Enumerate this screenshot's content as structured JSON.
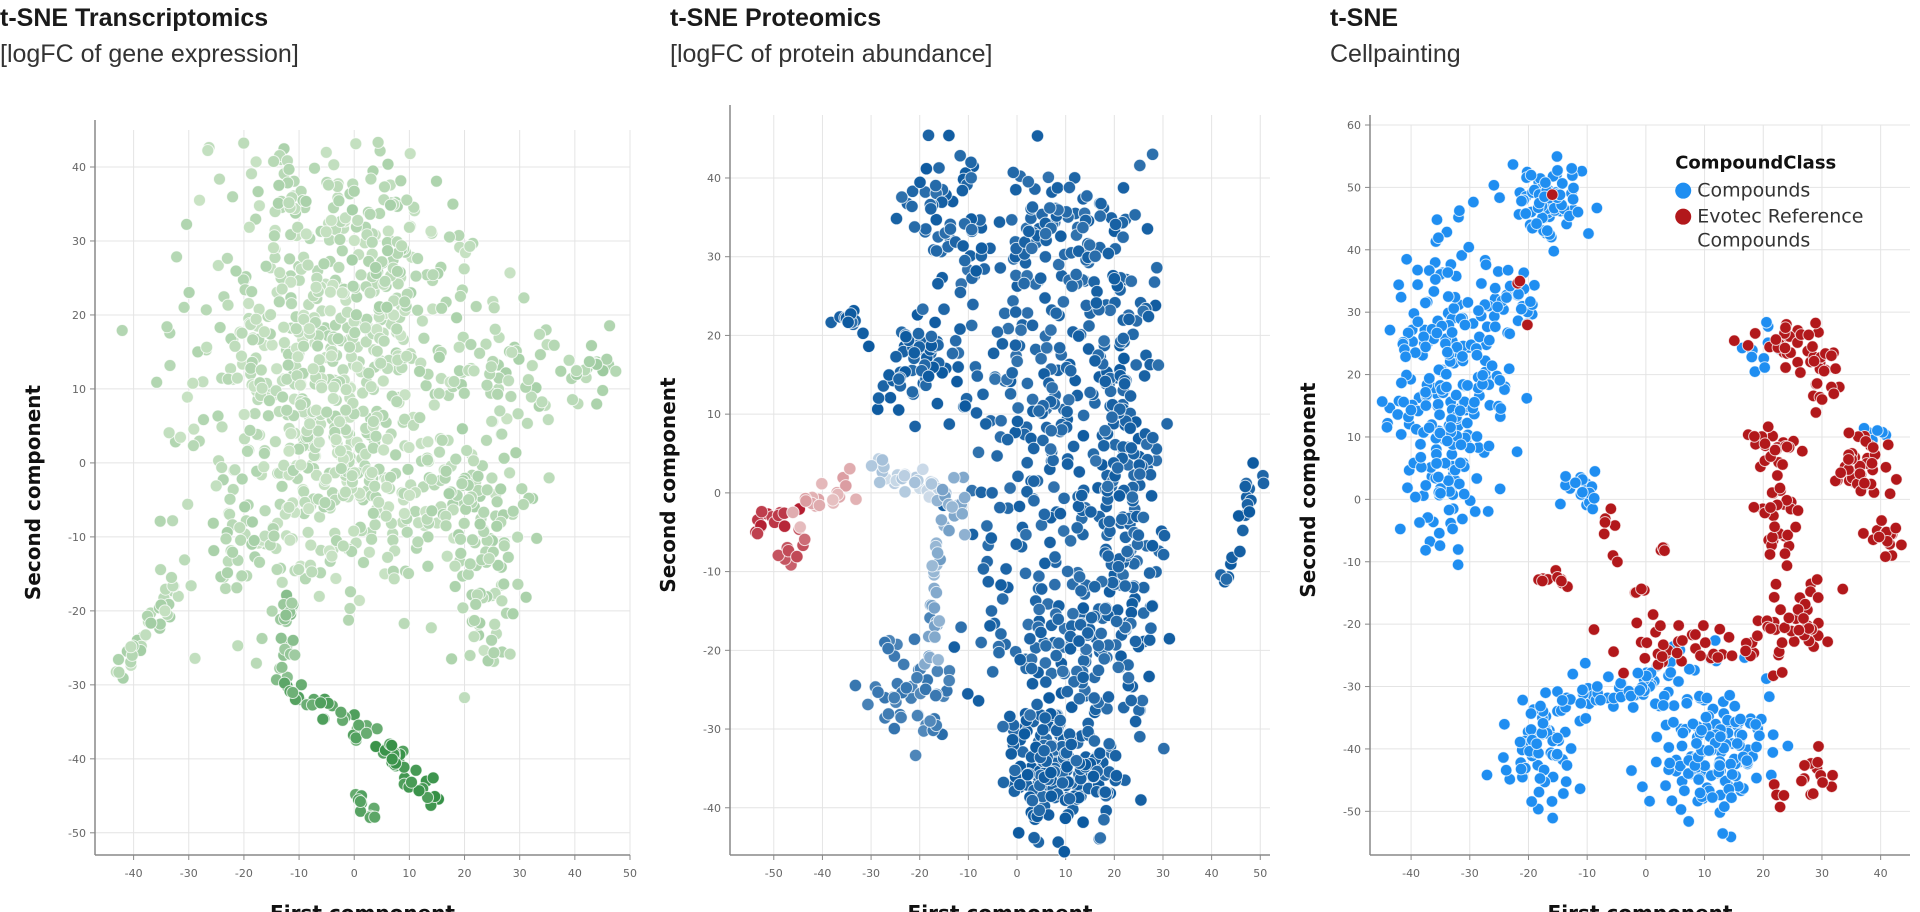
{
  "chart_data": [
    {
      "id": "transcriptomics",
      "type": "scatter",
      "title": "t-SNE Transcriptomics",
      "subtitle": "[logFC of gene expression]",
      "xlabel": "First component",
      "ylabel": "Second component",
      "xlim": [
        -47,
        50
      ],
      "ylim": [
        -53,
        45
      ],
      "xticks": [
        -40,
        -30,
        -20,
        -10,
        0,
        10,
        20,
        30,
        40,
        50
      ],
      "yticks": [
        -50,
        -40,
        -30,
        -20,
        -10,
        0,
        10,
        20,
        30,
        40
      ],
      "grid": true,
      "legend": null,
      "color_scale": "greens (light = low, dark = high)",
      "point_color_range": [
        "#cfe6c8",
        "#2e8b3e"
      ],
      "clusters": [
        {
          "cx": -5,
          "cy": 15,
          "sx": 12,
          "sy": 12,
          "n": 520,
          "shade": 0.15
        },
        {
          "cx": -2,
          "cy": -5,
          "sx": 12,
          "sy": 8,
          "n": 220,
          "shade": 0.15
        },
        {
          "cx": 30,
          "cy": 12,
          "sx": 8,
          "sy": 3,
          "n": 60,
          "shade": 0.2
        },
        {
          "cx": 43,
          "cy": 13,
          "sx": 2,
          "sy": 1,
          "n": 12,
          "shade": 0.25
        },
        {
          "cx": 22,
          "cy": -5,
          "sx": 5,
          "sy": 5,
          "n": 80,
          "shade": 0.2
        },
        {
          "cx": 24,
          "cy": -20,
          "sx": 3,
          "sy": 5,
          "n": 40,
          "shade": 0.2
        },
        {
          "cx": -12,
          "cy": 38,
          "sx": 2,
          "sy": 2,
          "n": 20,
          "shade": 0.2
        },
        {
          "cx": 5,
          "cy": 36,
          "sx": 4,
          "sy": 1.5,
          "n": 20,
          "shade": 0.2
        },
        {
          "cx": 8,
          "cy": 26,
          "sx": 5,
          "sy": 4,
          "n": 40,
          "shade": 0.2
        },
        {
          "cx": -20,
          "cy": -12,
          "sx": 3,
          "sy": 3,
          "n": 25,
          "shade": 0.2
        }
      ],
      "trails": [
        {
          "from": [
            -43,
            -29
          ],
          "to": [
            -30,
            -14
          ],
          "n": 40,
          "shade": 0.2
        },
        {
          "from": [
            -12,
            -18
          ],
          "to": [
            -12,
            -30
          ],
          "n": 25,
          "shade": 0.4
        },
        {
          "from": [
            -12,
            -31
          ],
          "to": [
            4,
            -37
          ],
          "n": 30,
          "shade": 0.7
        },
        {
          "from": [
            5,
            -38
          ],
          "to": [
            16,
            -47
          ],
          "n": 35,
          "shade": 0.85
        },
        {
          "from": [
            0,
            -45
          ],
          "to": [
            3,
            -48
          ],
          "n": 10,
          "shade": 0.75
        }
      ]
    },
    {
      "id": "proteomics",
      "type": "scatter",
      "title": "t-SNE Proteomics",
      "subtitle": "[logFC of protein abundance]",
      "xlabel": "First component",
      "ylabel": "Second component",
      "xlim": [
        -59,
        52
      ],
      "ylim": [
        -46,
        48
      ],
      "xticks": [
        -50,
        -40,
        -30,
        -20,
        -10,
        0,
        10,
        20,
        30,
        40,
        50
      ],
      "yticks": [
        -40,
        -30,
        -20,
        -10,
        0,
        10,
        20,
        30,
        40
      ],
      "grid": true,
      "legend": null,
      "color_scale": "diverging red-white-blue (red = negative, blue = positive)",
      "point_color_range": [
        "#b2182b",
        "#f7f7f7",
        "#08519c"
      ],
      "clusters": [
        {
          "cx": 8,
          "cy": -35,
          "sx": 5,
          "sy": 4,
          "n": 200,
          "shade": 0.95
        },
        {
          "cx": 22,
          "cy": 0,
          "sx": 4,
          "sy": 18,
          "n": 220,
          "shade": 0.92
        },
        {
          "cx": 5,
          "cy": 10,
          "sx": 9,
          "sy": 16,
          "n": 260,
          "shade": 0.9
        },
        {
          "cx": -20,
          "cy": 17,
          "sx": 5,
          "sy": 3,
          "n": 60,
          "shade": 0.95
        },
        {
          "cx": 8,
          "cy": 33,
          "sx": 6,
          "sy": 3,
          "n": 60,
          "shade": 0.9
        },
        {
          "cx": -15,
          "cy": 35,
          "sx": 4,
          "sy": 6,
          "n": 60,
          "shade": 0.92
        },
        {
          "cx": -22,
          "cy": -25,
          "sx": 5,
          "sy": 4,
          "n": 50,
          "shade": 0.75
        },
        {
          "cx": 10,
          "cy": -20,
          "sx": 8,
          "sy": 5,
          "n": 90,
          "shade": 0.9
        }
      ],
      "trails": [
        {
          "from": [
            -54,
            -4
          ],
          "to": [
            -46,
            -2
          ],
          "n": 14,
          "shade": -0.9
        },
        {
          "from": [
            -48,
            -8
          ],
          "to": [
            -44,
            -6
          ],
          "n": 10,
          "shade": -0.7
        },
        {
          "from": [
            -44,
            -1
          ],
          "to": [
            -33,
            1
          ],
          "n": 20,
          "shade": -0.3
        },
        {
          "from": [
            -30,
            3
          ],
          "to": [
            -15,
            0
          ],
          "n": 30,
          "shade": 0.2
        },
        {
          "from": [
            -15,
            0
          ],
          "to": [
            -18,
            -20
          ],
          "n": 30,
          "shade": 0.45
        },
        {
          "from": [
            -12,
            1
          ],
          "to": [
            -12,
            -5
          ],
          "n": 10,
          "shade": 0.4
        },
        {
          "from": [
            -37,
            22
          ],
          "to": [
            -30,
            20
          ],
          "n": 12,
          "shade": 0.95
        },
        {
          "from": [
            43,
            -12
          ],
          "to": [
            49,
            4
          ],
          "n": 20,
          "shade": 0.95
        }
      ]
    },
    {
      "id": "cellpainting",
      "type": "scatter",
      "title": "t-SNE",
      "subtitle": "Cellpainting",
      "xlabel": "First component",
      "ylabel": "Second component",
      "xlim": [
        -47,
        45
      ],
      "ylim": [
        -57,
        60
      ],
      "xticks": [
        -40,
        -30,
        -20,
        -10,
        0,
        10,
        20,
        30,
        40
      ],
      "yticks": [
        -50,
        -40,
        -30,
        -20,
        -10,
        0,
        10,
        20,
        30,
        40,
        50,
        60
      ],
      "grid": true,
      "legend": {
        "title": "CompoundClass",
        "position": "top-right",
        "entries": [
          {
            "label": "Compounds",
            "color": "#1f8ef1"
          },
          {
            "label": "Evotec Reference Compounds",
            "color": "#b2181b"
          }
        ]
      },
      "series": [
        {
          "name": "Compounds",
          "color": "#1f8ef1",
          "clusters": [
            {
              "cx": -17,
              "cy": 48,
              "sx": 2.8,
              "sy": 3.2,
              "n": 80
            },
            {
              "cx": -34,
              "cy": 15,
              "sx": 5,
              "sy": 12,
              "n": 240
            },
            {
              "cx": -25,
              "cy": 31,
              "sx": 3,
              "sy": 4,
              "n": 40
            },
            {
              "cx": -18,
              "cy": -40,
              "sx": 3,
              "sy": 4,
              "n": 70
            },
            {
              "cx": 12,
              "cy": -40,
              "sx": 5,
              "sy": 6,
              "n": 150
            },
            {
              "cx": -11,
              "cy": 1,
              "sx": 2,
              "sy": 2,
              "n": 18
            },
            {
              "cx": -8,
              "cy": -31,
              "sx": 4,
              "sy": 2,
              "n": 30
            },
            {
              "cx": 2,
              "cy": -30,
              "sx": 4,
              "sy": 2,
              "n": 30
            },
            {
              "cx": 19,
              "cy": 24,
              "sx": 2,
              "sy": 2,
              "n": 10
            },
            {
              "cx": 40,
              "cy": 10,
              "sx": 1.5,
              "sy": 1,
              "n": 6
            }
          ]
        },
        {
          "name": "Evotec Reference Compounds",
          "color": "#b2181b",
          "clusters": [
            {
              "cx": 24,
              "cy": 25,
              "sx": 3,
              "sy": 2,
              "n": 25
            },
            {
              "cx": 30,
              "cy": 20,
              "sx": 2,
              "sy": 3,
              "n": 25
            },
            {
              "cx": 22,
              "cy": 8,
              "sx": 2,
              "sy": 2,
              "n": 22
            },
            {
              "cx": 23,
              "cy": -4,
              "sx": 2,
              "sy": 5,
              "n": 30
            },
            {
              "cx": 37,
              "cy": 5,
              "sx": 3,
              "sy": 3,
              "n": 40
            },
            {
              "cx": 41,
              "cy": -6,
              "sx": 1.5,
              "sy": 2,
              "n": 15
            },
            {
              "cx": 24,
              "cy": -20,
              "sx": 4,
              "sy": 3,
              "n": 40
            },
            {
              "cx": 5,
              "cy": -23,
              "sx": 8,
              "sy": 2,
              "n": 40
            },
            {
              "cx": -15,
              "cy": -13,
              "sx": 2,
              "sy": 1,
              "n": 10
            },
            {
              "cx": -6,
              "cy": -5,
              "sx": 1,
              "sy": 2,
              "n": 7
            },
            {
              "cx": 29,
              "cy": -44,
              "sx": 1.5,
              "sy": 2,
              "n": 12
            },
            {
              "cx": 23,
              "cy": -47,
              "sx": 1,
              "sy": 1.5,
              "n": 5
            },
            {
              "cx": -22,
              "cy": 35,
              "sx": 0.6,
              "sy": 0.4,
              "n": 2
            },
            {
              "cx": -20,
              "cy": 28,
              "sx": 0.3,
              "sy": 0.3,
              "n": 1
            },
            {
              "cx": -16,
              "cy": 49,
              "sx": 0.2,
              "sy": 0.2,
              "n": 1
            },
            {
              "cx": -1,
              "cy": -15,
              "sx": 1,
              "sy": 0.5,
              "n": 4
            },
            {
              "cx": 3,
              "cy": -8,
              "sx": 0.8,
              "sy": 0.5,
              "n": 4
            }
          ]
        }
      ]
    }
  ]
}
